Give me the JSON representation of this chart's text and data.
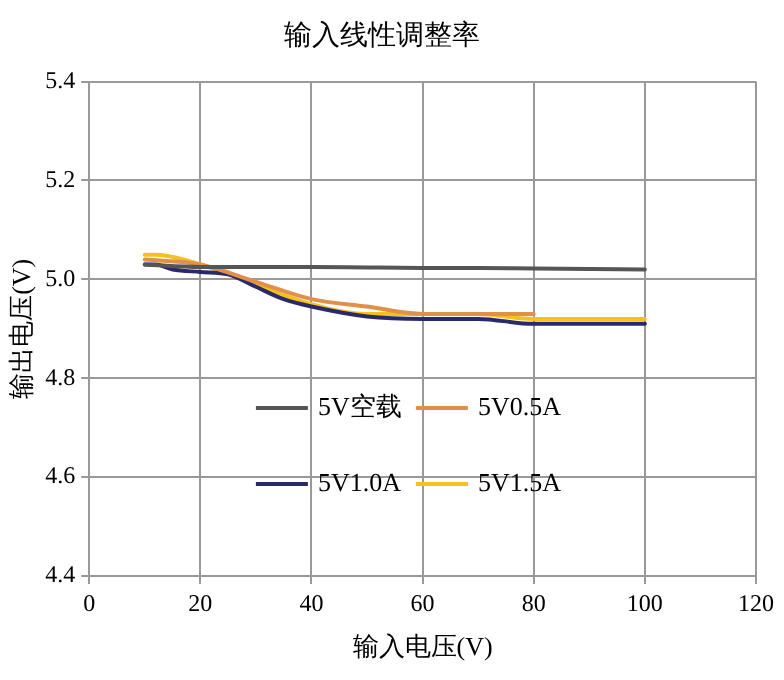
{
  "chart_data": {
    "type": "line",
    "title": "输入线性调整率",
    "xlabel": "输入电压(V)",
    "ylabel": "输出电压(V)",
    "xlim": [
      0,
      120
    ],
    "xticks": [
      0,
      20,
      40,
      60,
      80,
      100,
      120
    ],
    "ylim": [
      4.4,
      5.4
    ],
    "yticks": [
      4.4,
      4.6,
      4.8,
      {
        "value": 5,
        "label": "5.0"
      },
      5.2,
      5.4
    ],
    "grid": true,
    "legend": "center",
    "marker": "none",
    "line_style": "solid",
    "series": [
      {
        "name": "5V空载",
        "color": "#555555",
        "x": [
          10,
          20,
          30,
          40,
          50,
          60,
          70,
          80,
          90,
          100
        ],
        "values": [
          5.03,
          5.025,
          5.025,
          5.025,
          5.024,
          5.023,
          5.023,
          5.022,
          5.021,
          5.02
        ]
      },
      {
        "name": "5V0.5A",
        "color": "#e0904a",
        "x": [
          10,
          20,
          30,
          40,
          50,
          60,
          70,
          80
        ],
        "values": [
          5.04,
          5.03,
          4.995,
          4.96,
          4.945,
          4.93,
          4.93,
          4.93
        ]
      },
      {
        "name": "5V1.0A",
        "color": "#2a2a6a",
        "x": [
          10,
          12,
          15,
          20,
          25,
          30,
          35,
          40,
          50,
          60,
          70,
          80,
          90,
          100
        ],
        "values": [
          5.03,
          5.03,
          5.02,
          5.015,
          5.01,
          4.985,
          4.96,
          4.945,
          4.925,
          4.92,
          4.92,
          4.91,
          4.91,
          4.91
        ]
      },
      {
        "name": "5V1.5A",
        "color": "#f5c21b",
        "x": [
          10,
          12,
          20,
          30,
          40,
          50,
          60,
          70,
          80,
          90,
          100
        ],
        "values": [
          5.05,
          5.05,
          5.03,
          4.99,
          4.95,
          4.93,
          4.93,
          4.93,
          4.92,
          4.92,
          4.92
        ]
      }
    ]
  }
}
